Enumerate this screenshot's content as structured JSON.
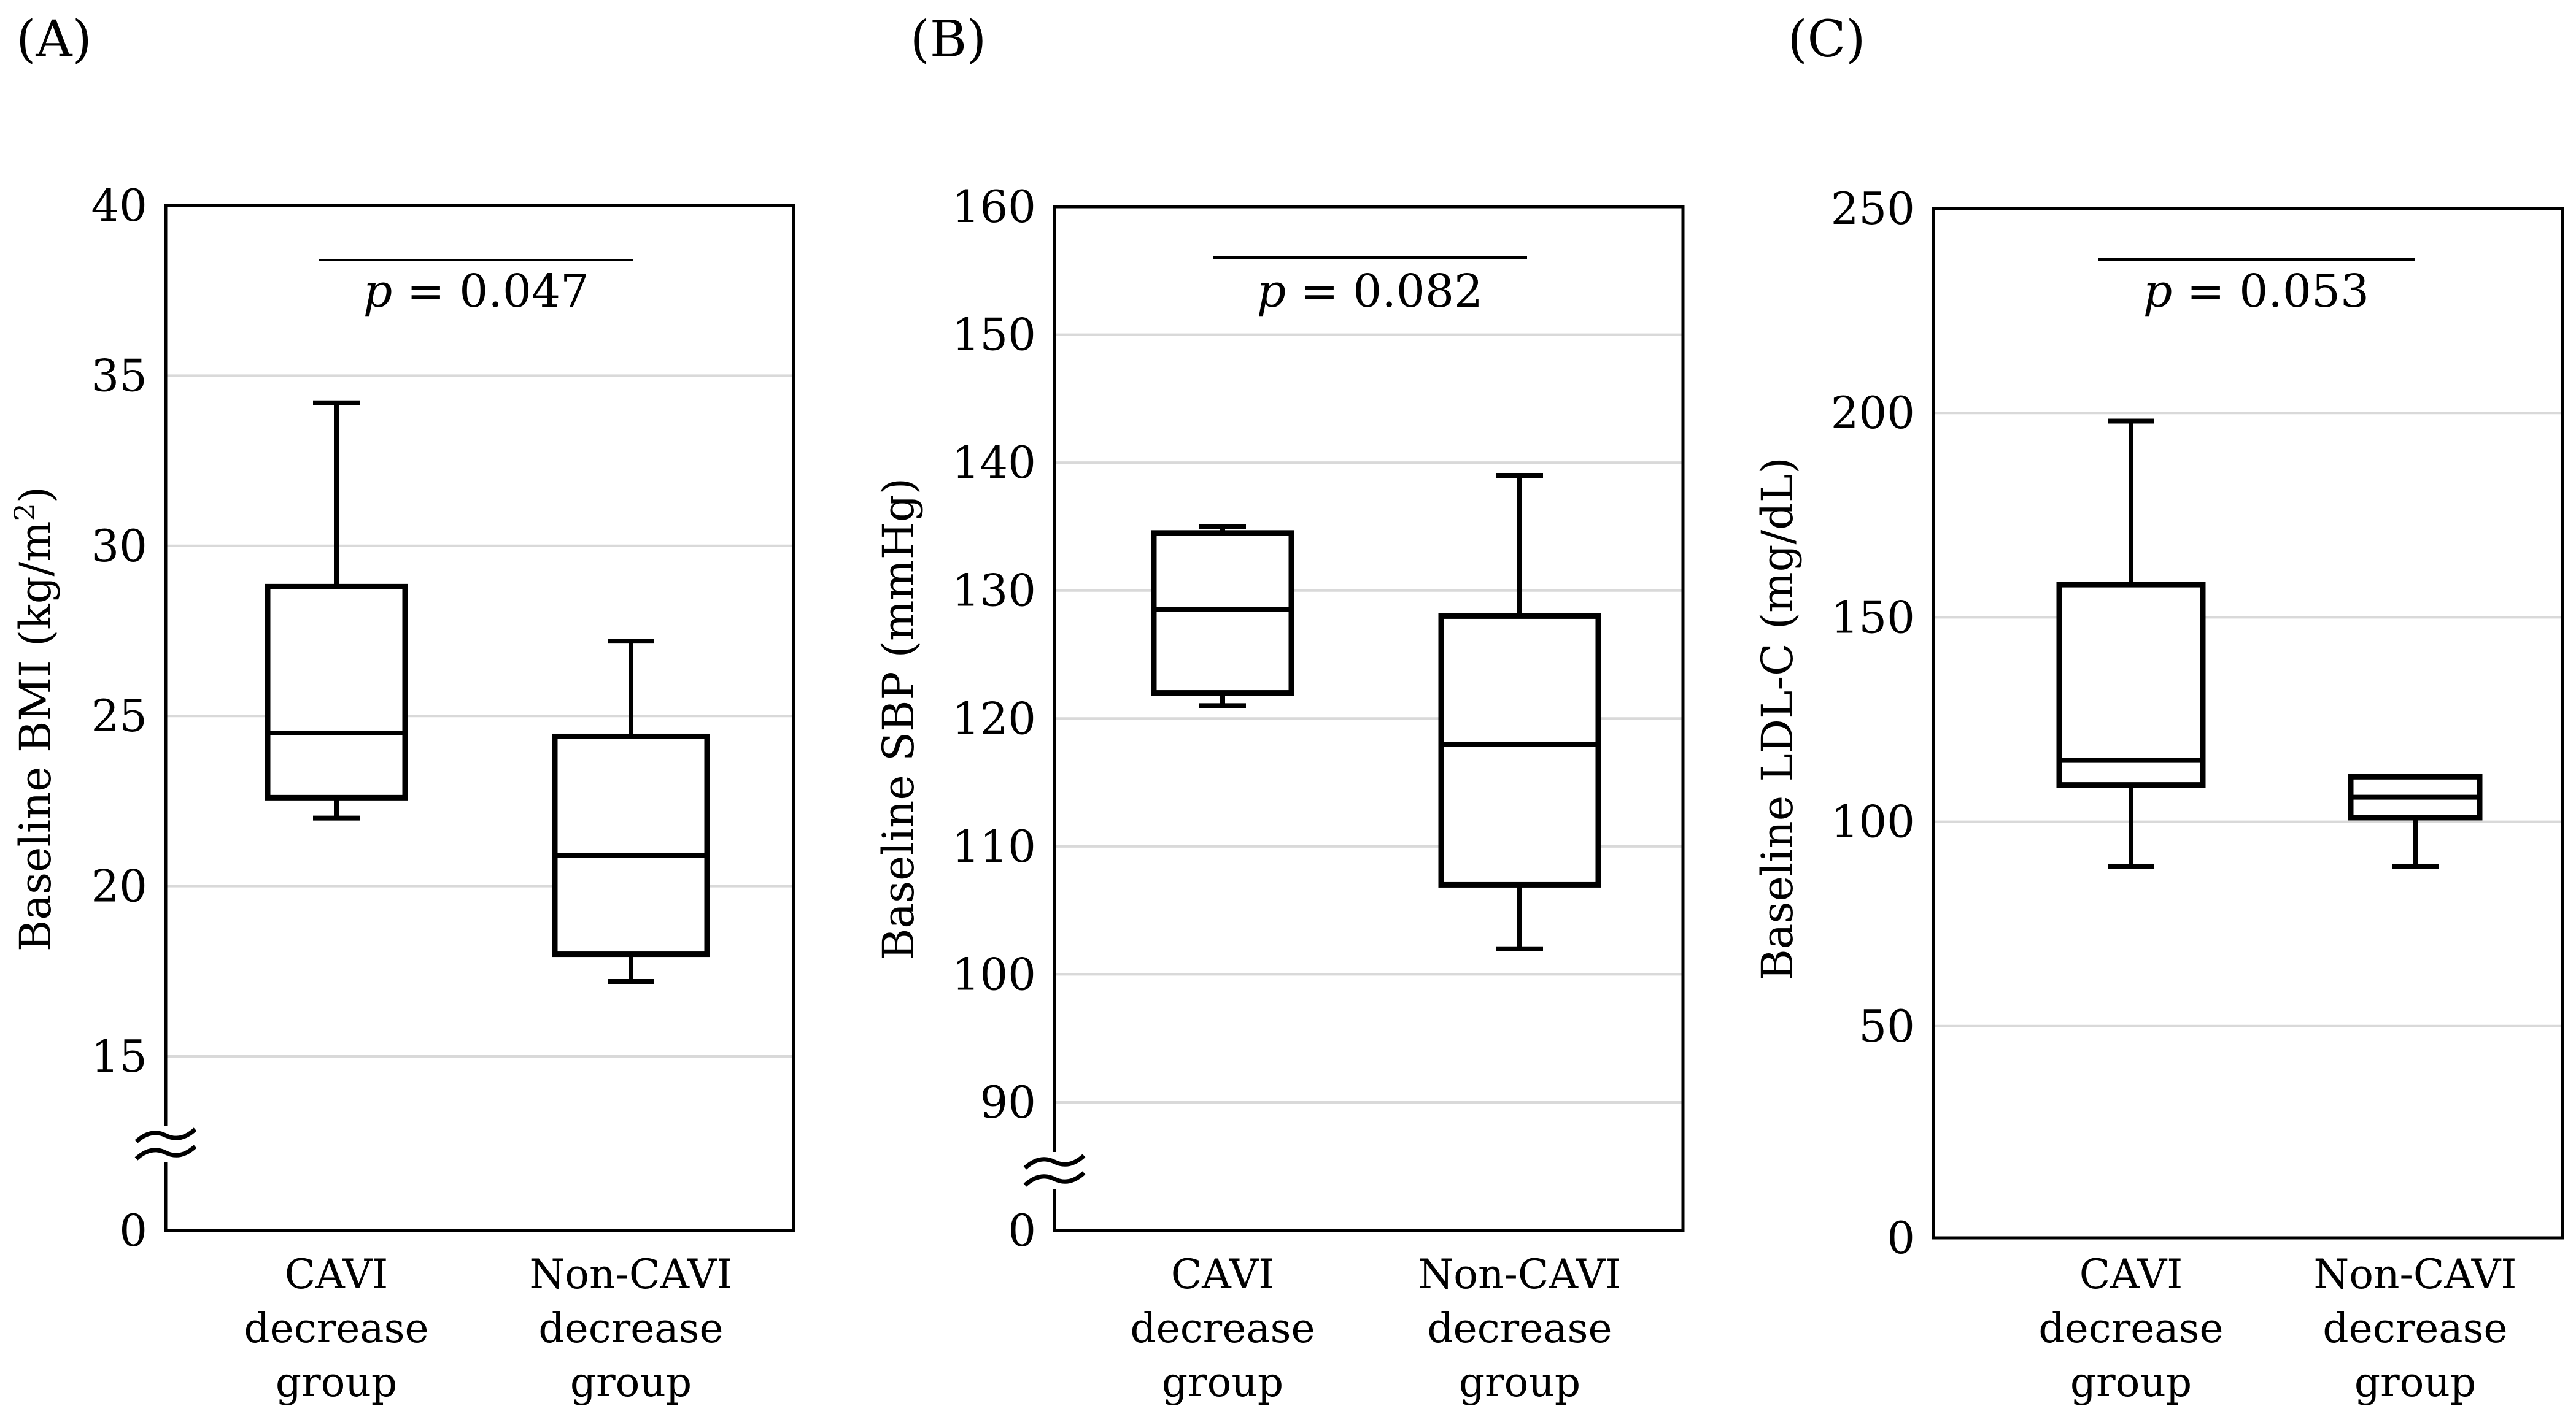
{
  "chart_data": [
    {
      "type": "box",
      "panel_label": "(A)",
      "title": "",
      "xlabel": "",
      "ylabel": "Baseline BMI (kg/m²)",
      "ylabel_parts": [
        "Baseline BMI (kg/m",
        "2",
        ")"
      ],
      "yticks": [
        0,
        15,
        20,
        25,
        30,
        35,
        40
      ],
      "ylim": [
        0,
        40
      ],
      "axis_break": true,
      "categories": [
        [
          "CAVI",
          "decrease",
          "group"
        ],
        [
          "Non-CAVI",
          "decrease",
          "group"
        ]
      ],
      "boxes": [
        {
          "group": "CAVI decrease group",
          "whisker_low": 22.0,
          "q1": 22.6,
          "median": 24.5,
          "q3": 28.8,
          "whisker_high": 34.2
        },
        {
          "group": "Non-CAVI decrease group",
          "whisker_low": 17.2,
          "q1": 18.0,
          "median": 20.9,
          "q3": 24.4,
          "whisker_high": 27.2
        }
      ],
      "annotation": {
        "p_symbol": "p",
        "p_value": " = 0.047"
      }
    },
    {
      "type": "box",
      "panel_label": "(B)",
      "title": "",
      "xlabel": "",
      "ylabel": "Baseline SBP (mmHg)",
      "yticks": [
        0,
        90,
        100,
        110,
        120,
        130,
        140,
        150,
        160
      ],
      "ylim": [
        0,
        160
      ],
      "axis_break": true,
      "categories": [
        [
          "CAVI",
          "decrease",
          "group"
        ],
        [
          "Non-CAVI",
          "decrease",
          "group"
        ]
      ],
      "boxes": [
        {
          "group": "CAVI decrease group",
          "whisker_low": 121,
          "q1": 122,
          "median": 128.5,
          "q3": 134.5,
          "whisker_high": 135
        },
        {
          "group": "Non-CAVI decrease group",
          "whisker_low": 102,
          "q1": 107,
          "median": 118,
          "q3": 128,
          "whisker_high": 139
        }
      ],
      "annotation": {
        "p_symbol": "p",
        "p_value": " = 0.082"
      }
    },
    {
      "type": "box",
      "panel_label": "(C)",
      "title": "",
      "xlabel": "",
      "ylabel": "Baseline LDL-C (mg/dL)",
      "yticks": [
        0,
        50,
        100,
        150,
        200,
        250
      ],
      "ylim": [
        0,
        250
      ],
      "axis_break": false,
      "categories": [
        [
          "CAVI",
          "decrease",
          "group"
        ],
        [
          "Non-CAVI",
          "decrease",
          "group"
        ]
      ],
      "boxes": [
        {
          "group": "CAVI decrease group",
          "whisker_low": 89,
          "q1": 109,
          "median": 115,
          "q3": 158,
          "whisker_high": 198
        },
        {
          "group": "Non-CAVI decrease group",
          "whisker_low": 89,
          "q1": 101,
          "median": 106,
          "q3": 111,
          "whisker_high": 111
        }
      ],
      "annotation": {
        "p_symbol": "p",
        "p_value": " = 0.053"
      }
    }
  ]
}
